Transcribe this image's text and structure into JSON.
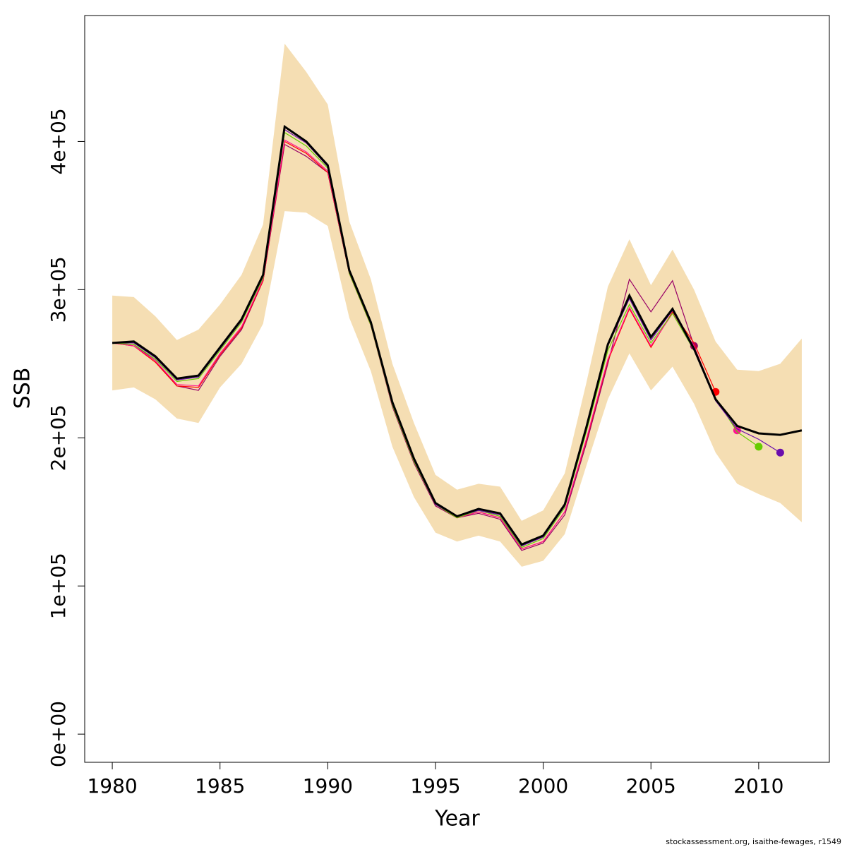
{
  "chart_data": {
    "type": "line",
    "xlabel": "Year",
    "ylabel": "SSB",
    "footer": "stockassessment.org, isaithe-fewages, r1549",
    "x": [
      1980,
      1981,
      1982,
      1983,
      1984,
      1985,
      1986,
      1987,
      1988,
      1989,
      1990,
      1991,
      1992,
      1993,
      1994,
      1995,
      1996,
      1997,
      1998,
      1999,
      2000,
      2001,
      2002,
      2003,
      2004,
      2005,
      2006,
      2007,
      2008,
      2009,
      2010,
      2011,
      2012
    ],
    "band": {
      "color": "#f5deb3",
      "lower": [
        232000,
        234000,
        226000,
        213000,
        210000,
        234000,
        250000,
        277000,
        353000,
        352000,
        343000,
        281000,
        245000,
        194000,
        160000,
        136000,
        130000,
        134000,
        130000,
        113000,
        117000,
        135000,
        181000,
        226000,
        257000,
        232000,
        248000,
        223000,
        190000,
        169000,
        162000,
        156000,
        143000
      ],
      "upper": [
        296000,
        295000,
        282000,
        266000,
        273000,
        290000,
        310000,
        344000,
        466000,
        447000,
        425000,
        346000,
        307000,
        250000,
        210000,
        175000,
        165000,
        169000,
        167000,
        144000,
        151000,
        176000,
        237000,
        302000,
        334000,
        303000,
        327000,
        300000,
        265000,
        246000,
        245000,
        250000,
        267000
      ]
    },
    "series": [
      {
        "color": "#990066",
        "values": [
          264000,
          263000,
          252000,
          235000,
          232000,
          255000,
          273000,
          306000,
          398000,
          390000,
          379000,
          311000,
          276000,
          221000,
          183000,
          154000,
          146000,
          149000,
          145000,
          124000,
          129000,
          148000,
          196000,
          250000,
          307000,
          285000,
          306000,
          262000,
          null,
          null,
          null,
          null,
          null
        ]
      },
      {
        "color": "#ff0000",
        "values": [
          264000,
          262000,
          251000,
          235000,
          234000,
          256000,
          274000,
          306000,
          400000,
          392000,
          379000,
          311000,
          276000,
          222000,
          184000,
          155000,
          146000,
          150000,
          146000,
          125000,
          130000,
          150000,
          198000,
          252000,
          287000,
          261000,
          285000,
          264000,
          231000,
          null,
          null,
          null,
          null
        ]
      },
      {
        "color": "#ff1493",
        "values": [
          264000,
          262000,
          252000,
          236000,
          235000,
          257000,
          275000,
          307000,
          401000,
          393000,
          380000,
          311000,
          276000,
          222000,
          184000,
          155000,
          146000,
          150000,
          146000,
          125000,
          130000,
          150000,
          199000,
          253000,
          288000,
          262000,
          284000,
          262000,
          226000,
          205000,
          null,
          null,
          null
        ]
      },
      {
        "color": "#66cc00",
        "values": [
          264000,
          263000,
          253000,
          238000,
          240000,
          259000,
          278000,
          308000,
          406000,
          397000,
          382000,
          311000,
          276000,
          222000,
          184000,
          155000,
          146000,
          151000,
          147000,
          126000,
          132000,
          153000,
          204000,
          259000,
          290000,
          264000,
          284000,
          259000,
          227000,
          204000,
          194000,
          null,
          null
        ]
      },
      {
        "color": "#6a0dad",
        "values": [
          264000,
          264000,
          254000,
          239000,
          241000,
          260000,
          279000,
          309000,
          408000,
          399000,
          383000,
          312000,
          277000,
          223000,
          185000,
          155000,
          147000,
          151000,
          148000,
          127000,
          133000,
          154000,
          206000,
          262000,
          294000,
          266000,
          286000,
          259000,
          225000,
          206000,
          199000,
          190000,
          null
        ]
      }
    ],
    "main": {
      "color": "#000000",
      "values": [
        264000,
        265000,
        255000,
        240000,
        242000,
        261000,
        280000,
        310000,
        410000,
        400000,
        384000,
        313000,
        278000,
        224000,
        186000,
        156000,
        147000,
        152000,
        149000,
        128000,
        134000,
        155000,
        207000,
        263000,
        296000,
        268000,
        287000,
        260000,
        226000,
        208000,
        203000,
        202000,
        205000
      ]
    },
    "xlim": [
      1978.72,
      2013.28
    ],
    "ylim": [
      -19000,
      485000
    ],
    "xticks": [
      1980,
      1985,
      1990,
      1995,
      2000,
      2005,
      2010
    ],
    "yticks": [
      {
        "value": 0,
        "label": "0e+00"
      },
      {
        "value": 100000,
        "label": "1e+05"
      },
      {
        "value": 200000,
        "label": "2e+05"
      },
      {
        "value": 300000,
        "label": "3e+05"
      },
      {
        "value": 400000,
        "label": "4e+05"
      }
    ]
  }
}
